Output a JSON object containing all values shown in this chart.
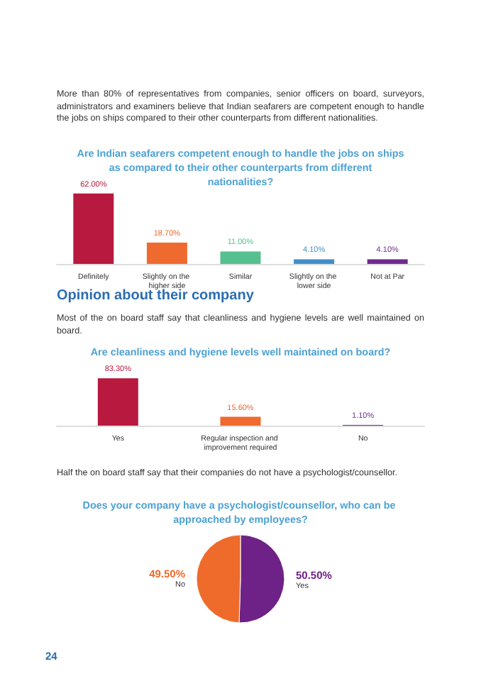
{
  "chart_data": [
    {
      "type": "bar",
      "title": "Are Indian seafarers competent enough to handle the jobs on ships as compared to their other counterparts from different nationalities?",
      "annotations": [
        "More than 80% of representatives from companies, senior officers on board, surveyors, administrators and examiners believe that Indian seafarers are competent enough to handle the jobs on ships compared to their other counterparts from different nationalities."
      ],
      "categories": [
        "Definitely",
        "Slightly on the higher side",
        "Similar",
        "Slightly on the lower side",
        "Not at Par"
      ],
      "values": [
        62.0,
        18.7,
        11.0,
        4.1,
        4.1
      ],
      "value_labels": [
        "62.00%",
        "18.70%",
        "11.00%",
        "4.10%",
        "4.10%"
      ],
      "colors": [
        "#b8193e",
        "#ef6a2e",
        "#56c08f",
        "#3e8fc9",
        "#6e2b91"
      ],
      "legend": false
    },
    {
      "type": "bar",
      "title": "Are cleanliness and hygiene levels well maintained on board?",
      "annotations": [
        "Opinion about their company",
        "Most of the on board staff say that cleanliness and hygiene levels are well maintained on board."
      ],
      "categories": [
        "Yes",
        "Regular inspection and improvement required",
        "No"
      ],
      "values": [
        83.3,
        15.6,
        1.1
      ],
      "value_labels": [
        "83.30%",
        "15.60%",
        "1.10%"
      ],
      "colors": [
        "#b8193e",
        "#ef6a2e",
        "#6e2b91"
      ],
      "legend": false
    },
    {
      "type": "pie",
      "title": "Does your company have a psychologist/counsellor, who can be approached by employees?",
      "annotations": [
        "Half the on board staff say that their companies do not have a psychologist/counsellor.",
        "24"
      ],
      "categories": [
        "Yes",
        "No"
      ],
      "values": [
        50.5,
        49.5
      ],
      "value_labels": [
        "50.50%",
        "49.50%"
      ],
      "colors": [
        "#6e2186",
        "#ee6b2b"
      ],
      "legend": false
    }
  ]
}
